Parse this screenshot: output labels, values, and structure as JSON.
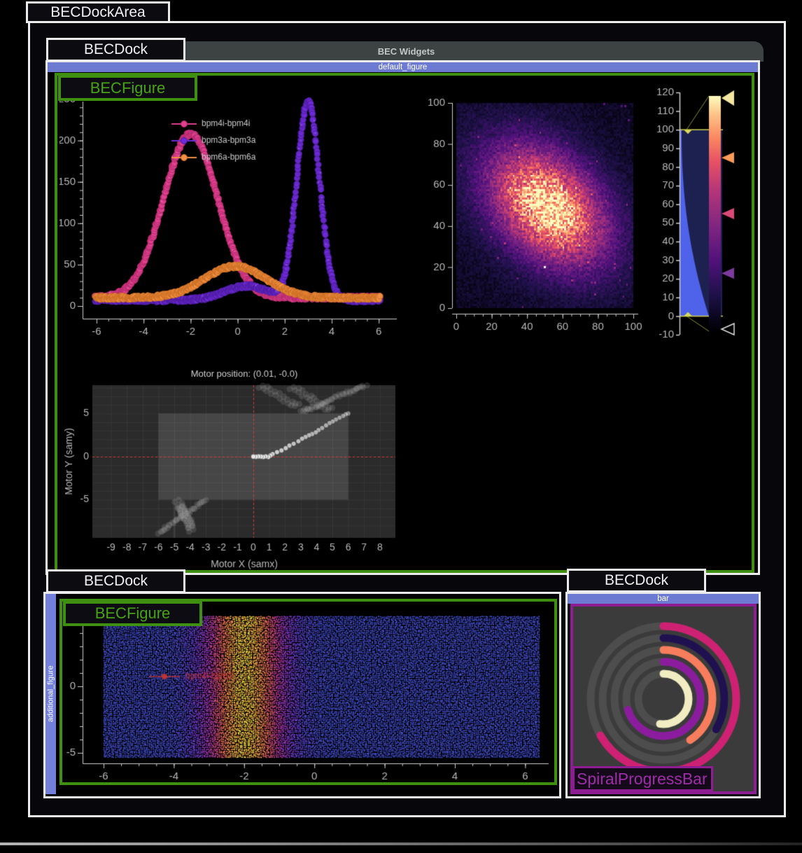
{
  "window": {
    "title_label": "BECDockArea"
  },
  "docks": {
    "top": {
      "label": "BECDock",
      "tab": "BEC Widgets",
      "title_bar": "default_figure",
      "figure_label": "BECFigure"
    },
    "bottom_left": {
      "label": "BECDock",
      "title_bar": "additional_figure",
      "figure_label": "BECFigure"
    },
    "bottom_right": {
      "label": "BECDock",
      "title_bar": "bar",
      "widget_label": "SpiralProgressBar"
    }
  },
  "colors": {
    "accent_blue_bar": "#6d7ad2",
    "green_border": "#3f9010",
    "purple_border": "#8e1d94",
    "white_border": "#ececec",
    "tab_bar_bg": "#3d4343",
    "axis_text": "#b8b8b8"
  },
  "chart_data": [
    {
      "id": "waveform",
      "type": "line",
      "xticks": [
        -6,
        -4,
        -2,
        0,
        2,
        4,
        6
      ],
      "yticks": [
        0,
        50,
        100,
        150,
        200,
        250
      ],
      "xlim": [
        -6.45,
        6.45
      ],
      "ylim": [
        -15,
        260
      ],
      "legend_position": "top-left",
      "series": [
        {
          "name": "bpm4i-bpm4i",
          "color": "#e0418f",
          "edge": "#b62a6e",
          "baseline": 10,
          "gaussians": [
            {
              "center": -2,
              "sigma": 1.15,
              "amp": 198
            }
          ]
        },
        {
          "name": "bpm3a-bpm3a",
          "color": "#6f2bd8",
          "edge": "#4d1ba0",
          "baseline": 7,
          "gaussians": [
            {
              "center": 3,
              "sigma": 0.48,
              "amp": 240
            },
            {
              "center": 0.4,
              "sigma": 0.95,
              "amp": 17
            }
          ]
        },
        {
          "name": "bpm6a-bpm6a",
          "color": "#f29045",
          "edge": "#cc6f22",
          "baseline": 10,
          "gaussians": [
            {
              "center": -0.1,
              "sigma": 1.3,
              "amp": 38
            }
          ]
        }
      ]
    },
    {
      "id": "heatmap",
      "type": "heatmap",
      "colormap": "magma",
      "xticks": [
        0,
        20,
        40,
        60,
        80,
        100
      ],
      "yticks": [
        0,
        20,
        40,
        60,
        80,
        100
      ],
      "xlim": [
        0,
        100
      ],
      "ylim": [
        0,
        100
      ],
      "blob": {
        "cx": 51,
        "cy": 49,
        "sigma_major": 26,
        "sigma_minor": 17,
        "angle_deg": -35
      },
      "white_dot": {
        "x": 50,
        "y": 20
      },
      "colorbar": {
        "range": [
          -10,
          120
        ],
        "ticks": [
          -10,
          0,
          10,
          20,
          30,
          40,
          50,
          60,
          70,
          80,
          90,
          100,
          110,
          120
        ],
        "region": [
          0,
          100
        ],
        "arrows": [
          {
            "value": 117,
            "color": "#f2e6a0"
          },
          {
            "value": 85,
            "color": "#fa9b58"
          },
          {
            "value": 55,
            "color": "#d84b78"
          },
          {
            "value": 23,
            "color": "#7c3a9d"
          },
          {
            "value": -7,
            "color": "outline"
          }
        ]
      }
    },
    {
      "id": "motormap",
      "type": "motor_map",
      "title": "Motor position: (0.01, -0.0)",
      "xlabel": "Motor X (samx)",
      "ylabel": "Motor Y (samy)",
      "xticks": [
        -9,
        -8,
        -7,
        -6,
        -5,
        -4,
        -3,
        -2,
        -1,
        0,
        1,
        2,
        3,
        4,
        5,
        6,
        7,
        8
      ],
      "yticks": [
        -5,
        0,
        5
      ],
      "limits": {
        "x": [
          -6,
          6
        ],
        "y": [
          -5,
          5
        ]
      },
      "crosshair": {
        "x": 0,
        "y": 0
      },
      "trail": [
        [
          0,
          0
        ],
        [
          0.16,
          -0.02
        ],
        [
          0.32,
          0.02
        ],
        [
          0.48,
          0
        ],
        [
          0.63,
          -0.04
        ],
        [
          0.78,
          0.03
        ],
        [
          0.95,
          -0.05
        ],
        [
          1.08,
          0.12
        ],
        [
          1.22,
          0.3
        ],
        [
          1.5,
          0.52
        ],
        [
          1.78,
          0.72
        ],
        [
          2.05,
          0.98
        ],
        [
          2.28,
          1.28
        ],
        [
          2.55,
          1.5
        ],
        [
          2.85,
          1.78
        ],
        [
          3.08,
          2.08
        ],
        [
          3.3,
          2.28
        ],
        [
          3.52,
          2.48
        ],
        [
          3.72,
          2.62
        ],
        [
          3.95,
          2.82
        ],
        [
          4.12,
          3.08
        ],
        [
          4.35,
          3.32
        ],
        [
          4.6,
          3.62
        ],
        [
          4.82,
          3.9
        ],
        [
          5.02,
          4.08
        ],
        [
          5.22,
          4.3
        ],
        [
          5.45,
          4.52
        ],
        [
          5.68,
          4.72
        ],
        [
          5.85,
          4.92
        ],
        [
          6.0,
          5.0
        ]
      ],
      "ghost_trails": [
        [
          [
            -1.2,
            9.6
          ],
          [
            3.2,
            5.2
          ]
        ],
        [
          [
            0.6,
            9.6
          ],
          [
            4.8,
            5.3
          ]
        ],
        [
          [
            3.3,
            5.3
          ],
          [
            6.9,
            8.2
          ]
        ],
        [
          [
            -6.5,
            -9.5
          ],
          [
            -3.2,
            -5.2
          ]
        ],
        [
          [
            -4.9,
            -5.4
          ],
          [
            -4.0,
            -8.6
          ]
        ]
      ]
    },
    {
      "id": "waterfall",
      "type": "scatter_heatmap",
      "colormap": "plasma",
      "xticks": [
        -6,
        -4,
        -2,
        0,
        2,
        4,
        6
      ],
      "yticks": [
        0,
        -5
      ],
      "band": {
        "center": -2,
        "sigma": 0.85
      },
      "legend": [
        {
          "name": "bpm4i-bpm4i",
          "color": "#cc3636"
        }
      ]
    },
    {
      "id": "spiral",
      "type": "spiral_progress",
      "track_color": "#4d4d4d",
      "background": "#3b3b3b",
      "rings": [
        {
          "color": "#ce2173",
          "sweep_deg": 240
        },
        {
          "color": "#1f1150",
          "sweep_deg": 120
        },
        {
          "color": "#f87d5c",
          "sweep_deg": 147
        },
        {
          "color": "#8c1c9e",
          "sweep_deg": 253
        },
        {
          "color": "#f1ecc2",
          "sweep_deg": 188
        }
      ]
    }
  ]
}
